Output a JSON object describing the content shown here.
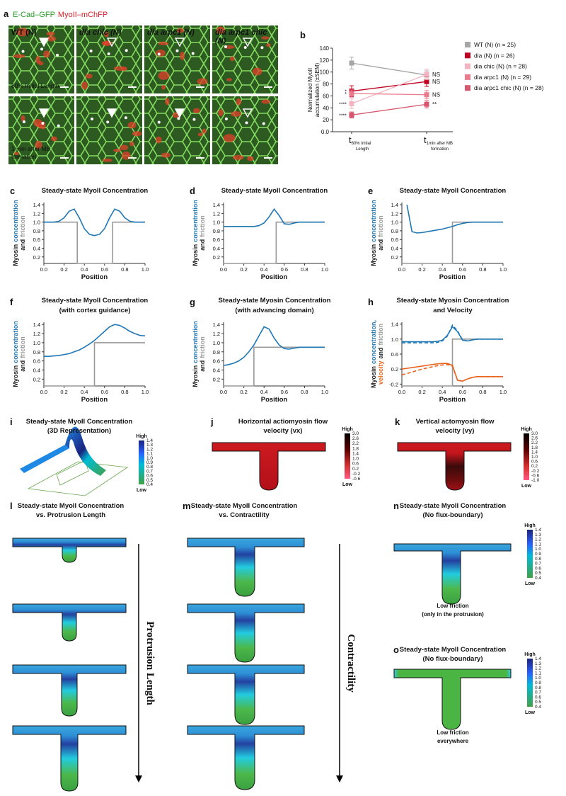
{
  "figure": {
    "a": {
      "letter": "a",
      "stains": [
        "E-Cad–GFP",
        "MyoII–mChFP"
      ],
      "columns": [
        [
          "WT (N)"
        ],
        [
          "dia chic (N)"
        ],
        [
          "dia arpc1 (N)"
        ],
        [
          "dia arpc1 chic",
          "(N)"
        ]
      ],
      "rows": [
        [
          "80% Initial Length"
        ],
        [
          "1 min after MB",
          "formation"
        ]
      ]
    },
    "maps": [
      {
        "letter": "i",
        "title": [
          "Steady-state MyoII Concentration",
          "(3D Representation)"
        ],
        "scale": {
          "high": "High",
          "low": "Low",
          "ticks": [
            "1.4",
            "1.3",
            "1.2",
            "1.1",
            "1.0",
            "0.9",
            "0.8",
            "0.7",
            "0.6",
            "0.5",
            "0.4"
          ]
        }
      },
      {
        "letter": "j",
        "title": [
          "Horizontal actiomyosin flow",
          "velocity (vx)"
        ],
        "scale": {
          "high": "High",
          "low": "Low",
          "ticks": [
            "3.0",
            "2.6",
            "2.2",
            "1.8",
            "1.4",
            "1.0",
            "0.6",
            "0.2",
            "-0.2",
            "-0.6"
          ]
        }
      },
      {
        "letter": "k",
        "title": [
          "Vertical actomyosin flow",
          "velocity (vy)"
        ],
        "scale": {
          "high": "High",
          "low": "Low",
          "ticks": [
            "3.0",
            "2.6",
            "2.2",
            "1.8",
            "1.4",
            "1.0",
            "0.6",
            "0.2",
            "-0.2",
            "-0.6",
            "-1.0"
          ]
        }
      },
      {
        "letter": "l",
        "title": [
          "Steady-state MyoII Concentration",
          "vs. Protrusion Length"
        ],
        "axis": "Protrusion Length"
      },
      {
        "letter": "m",
        "title": [
          "Steady-state MyoII Concentration",
          "vs. Contractility"
        ],
        "axis": "Contractility"
      },
      {
        "letter": "n",
        "title": [
          "Steady-state MyoII Concentration",
          "(No flux-boundary)"
        ],
        "scale": {
          "high": "High",
          "low": "Low",
          "ticks": [
            "1.4",
            "1.3",
            "1.2",
            "1.1",
            "1.0",
            "0.9",
            "0.8",
            "0.7",
            "0.6",
            "0.5",
            "0.4"
          ]
        },
        "note": [
          "Low friction",
          "(only in the protrusion)"
        ]
      },
      {
        "letter": "o",
        "title": [
          "Steady-state MyoII Concentration",
          "(No flux-boundary)"
        ],
        "scale": {
          "high": "High",
          "low": "Low",
          "ticks": [
            "1.4",
            "1.3",
            "1.2",
            "1.1",
            "1.0",
            "0.9",
            "0.8",
            "0.7",
            "0.6",
            "0.5",
            "0.4"
          ]
        },
        "note": [
          "Low friction",
          "everywhere"
        ]
      }
    ]
  },
  "chart_data": [
    {
      "type": "line",
      "letter": "b",
      "ylabel": [
        "Normalized MyoII",
        "accumulation (±SEM)"
      ],
      "categories": [
        "t80% Initial Length",
        "t1min after MB formation"
      ],
      "ylim": [
        0,
        140
      ],
      "yticks": [
        {
          "value": 0,
          "label": "0.0"
        },
        20,
        40,
        60,
        80,
        100,
        120,
        140
      ],
      "legend": "right",
      "series": [
        {
          "name": "WT (N) (n = 25)",
          "color": "#a6a6a6",
          "values": [
            115,
            95
          ],
          "errors": [
            10,
            7
          ]
        },
        {
          "name": "dia (N) (n = 26)",
          "color": "#c00020",
          "values": [
            68,
            84
          ],
          "errors": [
            9,
            8
          ],
          "significance": [
            "*",
            "NS"
          ]
        },
        {
          "name": "dia chic (N) (n = 28)",
          "color": "#f3b3c0",
          "values": [
            47,
            96
          ],
          "errors": [
            8,
            9
          ],
          "significance": [
            "****",
            "NS"
          ]
        },
        {
          "name": "dia arpc1 (N) (n = 29)",
          "color": "#ea7b8c",
          "values": [
            64,
            62
          ],
          "errors": [
            6,
            7
          ],
          "significance": [
            "*",
            "NS"
          ]
        },
        {
          "name": "dia arpc1 chic (N) (n = 28)",
          "color": "#d6566e",
          "values": [
            28,
            46
          ],
          "errors": [
            5,
            6
          ],
          "significance": [
            "****",
            "**"
          ]
        }
      ]
    },
    {
      "type": "line",
      "letter": "c",
      "title": [
        "Steady-state MyoII Concentration"
      ],
      "xlabel": "Position",
      "ylabel": [
        [
          {
            "text": "Myosin",
            "color": "#222222"
          },
          {
            "text": "concentration",
            "color": "#1f77b4"
          }
        ],
        [
          {
            "text": "and",
            "color": "#222222"
          },
          {
            "text": "friction",
            "color": "#999999"
          }
        ]
      ],
      "x": [
        0,
        0.05,
        0.1,
        0.15,
        0.2,
        0.25,
        0.3,
        0.35,
        0.4,
        0.45,
        0.5,
        0.55,
        0.6,
        0.65,
        0.7,
        0.75,
        0.8,
        0.85,
        0.9,
        0.95,
        1
      ],
      "series": [
        {
          "color": "#999999",
          "x": [
            0,
            0.33,
            0.33,
            0.68,
            0.68,
            1
          ],
          "values": [
            1,
            1,
            0.05,
            0.05,
            1,
            1
          ]
        },
        {
          "color": "#1f77b4",
          "values": [
            1.0,
            1.0,
            1.0,
            1.02,
            1.1,
            1.25,
            1.3,
            1.1,
            0.85,
            0.72,
            0.69,
            0.72,
            0.85,
            1.1,
            1.3,
            1.25,
            1.1,
            1.02,
            1.0,
            1.0,
            1.0
          ]
        }
      ],
      "xlim": [
        0,
        1
      ],
      "ylim": [
        0.05,
        1.45
      ],
      "xticks": [
        {
          "value": 0,
          "label": "0.0"
        },
        0.2,
        0.4,
        0.6,
        0.8,
        {
          "value": 1,
          "label": "1.0"
        }
      ],
      "yticks": [
        0.2,
        0.4,
        0.6,
        0.8,
        {
          "value": 1,
          "label": "1.0"
        },
        1.2,
        1.4
      ]
    },
    {
      "type": "line",
      "letter": "d",
      "title": [
        "Steady-state MyoII Concentration"
      ],
      "xlabel": "Position",
      "ylabel": [
        [
          {
            "text": "Myosin",
            "color": "#222222"
          },
          {
            "text": "concentration",
            "color": "#1f77b4"
          }
        ],
        [
          {
            "text": "and",
            "color": "#222222"
          },
          {
            "text": "friction",
            "color": "#999999"
          }
        ]
      ],
      "x": [
        0,
        0.05,
        0.1,
        0.15,
        0.2,
        0.25,
        0.3,
        0.35,
        0.4,
        0.45,
        0.5,
        0.55,
        0.6,
        0.65,
        0.7,
        0.75,
        0.8,
        0.85,
        0.9,
        0.95,
        1
      ],
      "series": [
        {
          "color": "#999999",
          "x": [
            0,
            0.52,
            0.52,
            1
          ],
          "values": [
            0.05,
            0.05,
            1,
            1
          ]
        },
        {
          "color": "#1f77b4",
          "values": [
            0.9,
            0.9,
            0.9,
            0.9,
            0.9,
            0.9,
            0.9,
            0.92,
            0.98,
            1.12,
            1.3,
            1.15,
            0.96,
            0.95,
            0.98,
            1.0,
            1.0,
            1.0,
            1.0,
            1.0,
            1.0
          ]
        }
      ],
      "xlim": [
        0,
        1
      ],
      "ylim": [
        0.05,
        1.45
      ],
      "xticks": [
        {
          "value": 0,
          "label": "0.0"
        },
        0.2,
        0.4,
        0.6,
        0.8,
        {
          "value": 1,
          "label": "1.0"
        }
      ],
      "yticks": [
        0.2,
        0.4,
        0.6,
        0.8,
        {
          "value": 1,
          "label": "1.0"
        },
        1.2,
        1.4
      ]
    },
    {
      "type": "line",
      "letter": "e",
      "title": [
        "Steady-state MyoII Concentration"
      ],
      "xlabel": "Position",
      "ylabel": [
        [
          {
            "text": "Myosin",
            "color": "#222222"
          },
          {
            "text": "concentration",
            "color": "#1f77b4"
          }
        ],
        [
          {
            "text": "and",
            "color": "#222222"
          },
          {
            "text": "friction",
            "color": "#999999"
          }
        ]
      ],
      "x": [
        0,
        0.05,
        0.1,
        0.15,
        0.2,
        0.25,
        0.3,
        0.35,
        0.4,
        0.45,
        0.5,
        0.55,
        0.6,
        0.65,
        0.7,
        0.75,
        0.8,
        0.85,
        0.9,
        0.95,
        1
      ],
      "series": [
        {
          "color": "#999999",
          "x": [
            0,
            0.5,
            0.5,
            1
          ],
          "values": [
            0.05,
            0.05,
            1,
            1
          ]
        },
        {
          "color": "#1f77b4",
          "values": [
            null,
            1.4,
            0.78,
            0.75,
            0.76,
            0.78,
            0.8,
            0.82,
            0.84,
            0.87,
            0.9,
            0.94,
            0.97,
            0.99,
            1.0,
            1.0,
            1.0,
            1.0,
            1.0,
            1.0,
            1.0
          ]
        }
      ],
      "xlim": [
        0,
        1
      ],
      "ylim": [
        0.05,
        1.45
      ],
      "xticks": [
        {
          "value": 0,
          "label": "0.0"
        },
        0.2,
        0.4,
        0.6,
        0.8,
        {
          "value": 1,
          "label": "1.0"
        }
      ],
      "yticks": [
        0.2,
        0.4,
        0.6,
        0.8,
        {
          "value": 1,
          "label": "1.0"
        },
        1.2,
        1.4
      ]
    },
    {
      "type": "line",
      "letter": "f",
      "title": [
        "Steady-state MyoII Concentration",
        "(with cortex guidance)"
      ],
      "xlabel": "Position",
      "ylabel": [
        [
          {
            "text": "Myosin",
            "color": "#222222"
          },
          {
            "text": "concentration",
            "color": "#1f77b4"
          }
        ],
        [
          {
            "text": "and",
            "color": "#222222"
          },
          {
            "text": "friction",
            "color": "#999999"
          }
        ]
      ],
      "x": [
        0,
        0.05,
        0.1,
        0.15,
        0.2,
        0.25,
        0.3,
        0.35,
        0.4,
        0.45,
        0.5,
        0.55,
        0.6,
        0.65,
        0.7,
        0.75,
        0.8,
        0.85,
        0.9,
        0.95,
        1
      ],
      "series": [
        {
          "color": "#999999",
          "x": [
            0,
            0.5,
            0.5,
            1
          ],
          "values": [
            0.05,
            0.05,
            1,
            1
          ]
        },
        {
          "color": "#1f77b4",
          "values": [
            0.7,
            0.7,
            0.71,
            0.72,
            0.74,
            0.76,
            0.8,
            0.84,
            0.9,
            0.97,
            1.05,
            1.15,
            1.25,
            1.35,
            1.4,
            1.38,
            1.32,
            1.25,
            1.2,
            1.16,
            1.15
          ]
        }
      ],
      "xlim": [
        0,
        1
      ],
      "ylim": [
        0.05,
        1.45
      ],
      "xticks": [
        {
          "value": 0,
          "label": "0.0"
        },
        0.2,
        0.4,
        0.6,
        0.8,
        {
          "value": 1,
          "label": "1.0"
        }
      ],
      "yticks": [
        0.2,
        0.4,
        0.6,
        0.8,
        {
          "value": 1,
          "label": "1.0"
        },
        1.2,
        1.4
      ]
    },
    {
      "type": "line",
      "letter": "g",
      "title": [
        "Steady-state Myosin Concentration",
        "(with advancing domain)"
      ],
      "xlabel": "Position",
      "ylabel": [
        [
          {
            "text": "Myosin",
            "color": "#222222"
          },
          {
            "text": "concentration",
            "color": "#1f77b4"
          }
        ],
        [
          {
            "text": "and",
            "color": "#222222"
          },
          {
            "text": "friction",
            "color": "#999999"
          }
        ]
      ],
      "x": [
        0,
        0.05,
        0.1,
        0.15,
        0.2,
        0.25,
        0.3,
        0.35,
        0.4,
        0.45,
        0.5,
        0.55,
        0.6,
        0.65,
        0.7,
        0.75,
        0.8,
        0.85,
        0.9,
        0.95,
        1
      ],
      "series": [
        {
          "color": "#999999",
          "x": [
            0,
            0.3,
            0.3,
            1
          ],
          "values": [
            0.05,
            0.05,
            0.9,
            0.9
          ]
        },
        {
          "color": "#1f77b4",
          "values": [
            0.5,
            0.52,
            0.55,
            0.6,
            0.68,
            0.8,
            0.95,
            1.15,
            1.35,
            1.3,
            1.1,
            0.95,
            0.87,
            0.86,
            0.88,
            0.9,
            0.9,
            0.9,
            0.9,
            0.9,
            0.9
          ]
        }
      ],
      "xlim": [
        0,
        1
      ],
      "ylim": [
        0.05,
        1.45
      ],
      "xticks": [
        {
          "value": 0,
          "label": "0.0"
        },
        0.2,
        0.4,
        0.6,
        0.8,
        {
          "value": 1,
          "label": "1.0"
        }
      ],
      "yticks": [
        0.2,
        0.4,
        0.6,
        0.8,
        {
          "value": 1,
          "label": "1.0"
        },
        1.2,
        1.4
      ]
    },
    {
      "type": "line",
      "letter": "h",
      "title": [
        "Steady-state Myosin Concentration",
        "and Velocity"
      ],
      "xlabel": "Position",
      "ylabel": [
        [
          {
            "text": "Myosin",
            "color": "#222222"
          },
          {
            "text": "concentration,",
            "color": "#1f77b4"
          }
        ],
        [
          {
            "text": "velocity",
            "color": "#e8641e"
          },
          {
            "text": "and",
            "color": "#222222"
          },
          {
            "text": "friction",
            "color": "#999999"
          }
        ]
      ],
      "x": [
        0,
        0.05,
        0.1,
        0.15,
        0.2,
        0.25,
        0.3,
        0.35,
        0.4,
        0.45,
        0.5,
        0.55,
        0.6,
        0.65,
        0.7,
        0.75,
        0.8,
        0.85,
        0.9,
        0.95,
        1
      ],
      "series": [
        {
          "color": "#999999",
          "x": [
            0,
            0.5,
            0.5,
            1
          ],
          "values": [
            -0.25,
            -0.25,
            1,
            1
          ]
        },
        {
          "color": "#1f77b4",
          "values": [
            0.93,
            0.93,
            0.93,
            0.93,
            0.93,
            0.93,
            0.93,
            0.94,
            0.97,
            1.1,
            1.33,
            1.2,
            0.97,
            0.95,
            0.98,
            1.0,
            1.0,
            1.0,
            1.0,
            1.0,
            1.0
          ]
        },
        {
          "color": "#1f77b4",
          "dash": true,
          "values": [
            0.9,
            0.9,
            0.9,
            0.9,
            0.9,
            0.9,
            0.9,
            0.91,
            0.95,
            1.08,
            1.37,
            1.22,
            0.98,
            0.95,
            0.98,
            1.0,
            1.0,
            1.0,
            1.0,
            1.0,
            1.0
          ]
        },
        {
          "color": "#e8641e",
          "values": [
            0.2,
            0.22,
            0.24,
            0.26,
            0.28,
            0.3,
            0.32,
            0.34,
            0.35,
            0.35,
            0.3,
            -0.1,
            -0.12,
            -0.06,
            -0.02,
            0,
            0,
            0,
            0,
            0,
            0
          ]
        },
        {
          "color": "#e8641e",
          "dash": true,
          "values": [
            0.05,
            0.08,
            0.12,
            0.16,
            0.2,
            0.23,
            0.26,
            0.29,
            0.31,
            0.32,
            0.28,
            -0.1,
            -0.12,
            -0.06,
            -0.02,
            0,
            0,
            0,
            0,
            0,
            0
          ]
        }
      ],
      "xlim": [
        0,
        1
      ],
      "ylim": [
        -0.25,
        1.45
      ],
      "xticks": [
        {
          "value": 0,
          "label": "0.0"
        },
        0.2,
        0.4,
        0.6,
        0.8,
        {
          "value": 1,
          "label": "1.0"
        }
      ],
      "yticks": [
        -0.2,
        0.2,
        0.6,
        {
          "value": 1,
          "label": "1.0"
        },
        1.4
      ]
    }
  ]
}
